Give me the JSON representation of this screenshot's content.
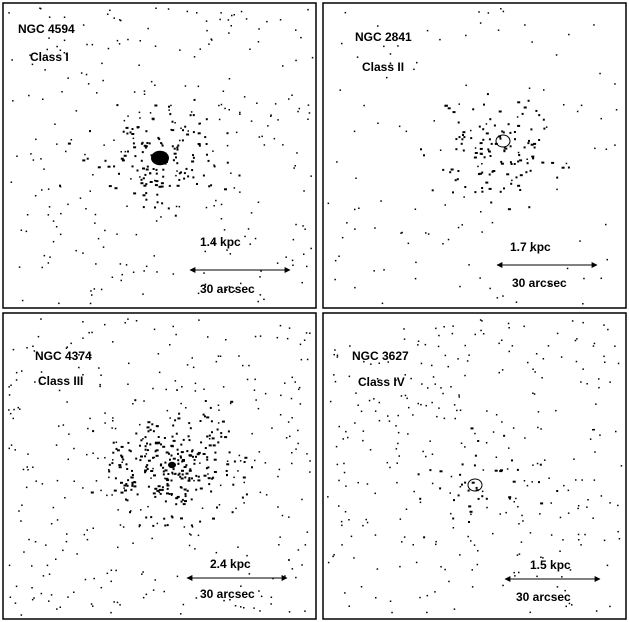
{
  "panels": [
    {
      "galaxy": "NGC 4594",
      "class": "Class I",
      "scale": "1.4 kpc",
      "angular": "30 arcsec"
    },
    {
      "galaxy": "NGC 2841",
      "class": "Class II",
      "scale": "1.7 kpc",
      "angular": "30 arcsec"
    },
    {
      "galaxy": "NGC 4374",
      "class": "Class III",
      "scale": "2.4 kpc",
      "angular": "30 arcsec"
    },
    {
      "galaxy": "NGC 3627",
      "class": "Class IV",
      "scale": "1.5 kpc",
      "angular": "30 arcsec"
    }
  ]
}
